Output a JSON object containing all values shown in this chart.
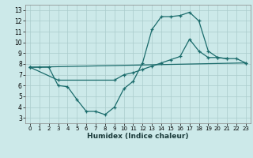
{
  "xlabel": "Humidex (Indice chaleur)",
  "xlim": [
    -0.5,
    23.5
  ],
  "ylim": [
    2.5,
    13.5
  ],
  "xticks": [
    0,
    1,
    2,
    3,
    4,
    5,
    6,
    7,
    8,
    9,
    10,
    11,
    12,
    13,
    14,
    15,
    16,
    17,
    18,
    19,
    20,
    21,
    22,
    23
  ],
  "yticks": [
    3,
    4,
    5,
    6,
    7,
    8,
    9,
    10,
    11,
    12,
    13
  ],
  "bg_color": "#cce9e9",
  "line_color": "#1a6b6b",
  "grid_color": "#aacccc",
  "line1_x": [
    0,
    1,
    2,
    3,
    4,
    5,
    6,
    7,
    8,
    9,
    10,
    11,
    12,
    13,
    14,
    15,
    16,
    17,
    18,
    19,
    20,
    21
  ],
  "line1_y": [
    7.7,
    7.7,
    7.7,
    6.0,
    5.9,
    4.7,
    3.6,
    3.6,
    3.3,
    4.0,
    5.7,
    6.4,
    8.1,
    11.2,
    12.4,
    12.4,
    12.5,
    12.8,
    12.0,
    9.2,
    8.6,
    8.5
  ],
  "line2_x": [
    0,
    23
  ],
  "line2_y": [
    7.7,
    8.1
  ],
  "line3_x": [
    0,
    3,
    9,
    10,
    11,
    12,
    13,
    14,
    15,
    16,
    17,
    18,
    19,
    20,
    21,
    22,
    23
  ],
  "line3_y": [
    7.7,
    6.5,
    6.5,
    7.0,
    7.2,
    7.5,
    7.8,
    8.1,
    8.4,
    8.7,
    10.3,
    9.2,
    8.6,
    8.6,
    8.5,
    8.5,
    8.1
  ]
}
